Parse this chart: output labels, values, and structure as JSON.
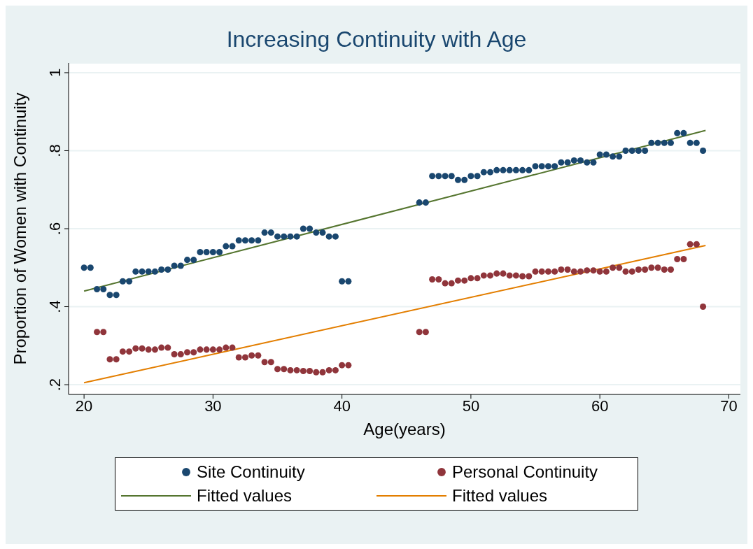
{
  "chart_data": {
    "type": "scatter",
    "title": "Increasing Continuity with Age",
    "xlabel": "Age(years)",
    "ylabel": "Proportion of Women with Continuity",
    "xlim": [
      18.8,
      70.9
    ],
    "ylim": [
      0.175,
      1.025
    ],
    "xticks": [
      20,
      30,
      40,
      50,
      60,
      70
    ],
    "yticks": [
      {
        "value": 0.2,
        "label": ".2"
      },
      {
        "value": 0.4,
        "label": ".4"
      },
      {
        "value": 0.6,
        "label": ".6"
      },
      {
        "value": 0.8,
        "label": ".8"
      },
      {
        "value": 1,
        "label": "1"
      }
    ],
    "grid": "y",
    "legend": "bottom",
    "series": [
      {
        "name": "Site Continuity",
        "color": "#1a476f",
        "marker": "circle",
        "x": [
          20,
          20.5,
          21,
          21.5,
          22,
          22.5,
          23,
          23.5,
          24,
          24.5,
          25,
          25.5,
          26,
          26.5,
          27,
          27.5,
          28,
          28.5,
          29,
          29.5,
          30,
          30.5,
          31,
          31.5,
          32,
          32.5,
          33,
          33.5,
          34,
          34.5,
          35,
          35.5,
          36,
          36.5,
          37,
          37.5,
          38,
          38.5,
          39,
          39.5,
          40,
          40.5,
          46,
          46.5,
          47,
          47.5,
          48,
          48.5,
          49,
          49.5,
          50,
          50.5,
          51,
          51.5,
          52,
          52.5,
          53,
          53.5,
          54,
          54.5,
          55,
          55.5,
          56,
          56.5,
          57,
          57.5,
          58,
          58.5,
          59,
          59.5,
          60,
          60.5,
          61,
          61.5,
          62,
          62.5,
          63,
          63.5,
          64,
          64.5,
          65,
          65.5,
          66,
          66.5,
          67,
          67.5,
          68
        ],
        "values": [
          0.5,
          0.5,
          0.445,
          0.445,
          0.43,
          0.43,
          0.465,
          0.465,
          0.49,
          0.49,
          0.49,
          0.49,
          0.495,
          0.495,
          0.505,
          0.505,
          0.52,
          0.52,
          0.54,
          0.54,
          0.54,
          0.54,
          0.555,
          0.555,
          0.57,
          0.57,
          0.57,
          0.57,
          0.59,
          0.59,
          0.58,
          0.58,
          0.58,
          0.58,
          0.6,
          0.6,
          0.59,
          0.59,
          0.58,
          0.58,
          0.465,
          0.465,
          0.667,
          0.667,
          0.735,
          0.735,
          0.735,
          0.735,
          0.725,
          0.725,
          0.735,
          0.735,
          0.745,
          0.745,
          0.75,
          0.75,
          0.75,
          0.75,
          0.75,
          0.75,
          0.76,
          0.76,
          0.76,
          0.76,
          0.77,
          0.77,
          0.775,
          0.775,
          0.77,
          0.77,
          0.79,
          0.79,
          0.785,
          0.785,
          0.8,
          0.8,
          0.8,
          0.8,
          0.82,
          0.82,
          0.82,
          0.82,
          0.845,
          0.845,
          0.82,
          0.82,
          0.8
        ]
      },
      {
        "name": "Personal Continuity",
        "color": "#90353b",
        "marker": "circle",
        "x": [
          21,
          21.5,
          22,
          22.5,
          23,
          23.5,
          24,
          24.5,
          25,
          25.5,
          26,
          26.5,
          27,
          27.5,
          28,
          28.5,
          29,
          29.5,
          30,
          30.5,
          31,
          31.5,
          32,
          32.5,
          33,
          33.5,
          34,
          34.5,
          35,
          35.5,
          36,
          36.5,
          37,
          37.5,
          38,
          38.5,
          39,
          39.5,
          40,
          40.5,
          46,
          46.5,
          47,
          47.5,
          48,
          48.5,
          49,
          49.5,
          50,
          50.5,
          51,
          51.5,
          52,
          52.5,
          53,
          53.5,
          54,
          54.5,
          55,
          55.5,
          56,
          56.5,
          57,
          57.5,
          58,
          58.5,
          59,
          59.5,
          60,
          60.5,
          61,
          61.5,
          62,
          62.5,
          63,
          63.5,
          64,
          64.5,
          65,
          65.5,
          66,
          66.5,
          67,
          67.5,
          68
        ],
        "values": [
          0.335,
          0.335,
          0.265,
          0.265,
          0.285,
          0.285,
          0.293,
          0.293,
          0.29,
          0.29,
          0.295,
          0.295,
          0.278,
          0.278,
          0.283,
          0.283,
          0.29,
          0.29,
          0.29,
          0.29,
          0.295,
          0.295,
          0.27,
          0.27,
          0.275,
          0.275,
          0.258,
          0.258,
          0.24,
          0.24,
          0.237,
          0.237,
          0.235,
          0.235,
          0.232,
          0.232,
          0.237,
          0.237,
          0.25,
          0.25,
          0.335,
          0.335,
          0.47,
          0.47,
          0.46,
          0.46,
          0.467,
          0.467,
          0.473,
          0.473,
          0.48,
          0.48,
          0.485,
          0.485,
          0.48,
          0.48,
          0.478,
          0.478,
          0.49,
          0.49,
          0.49,
          0.49,
          0.495,
          0.495,
          0.49,
          0.49,
          0.493,
          0.493,
          0.49,
          0.49,
          0.5,
          0.5,
          0.49,
          0.49,
          0.495,
          0.495,
          0.5,
          0.5,
          0.495,
          0.495,
          0.522,
          0.522,
          0.56,
          0.56,
          0.4
        ]
      },
      {
        "name": "Fitted values",
        "type": "line",
        "color": "#55752f",
        "x": [
          20,
          68.2
        ],
        "values": [
          0.44,
          0.852
        ]
      },
      {
        "name": "Fitted values",
        "type": "line",
        "color": "#e37e00",
        "x": [
          20,
          68.2
        ],
        "values": [
          0.205,
          0.557
        ]
      }
    ]
  }
}
